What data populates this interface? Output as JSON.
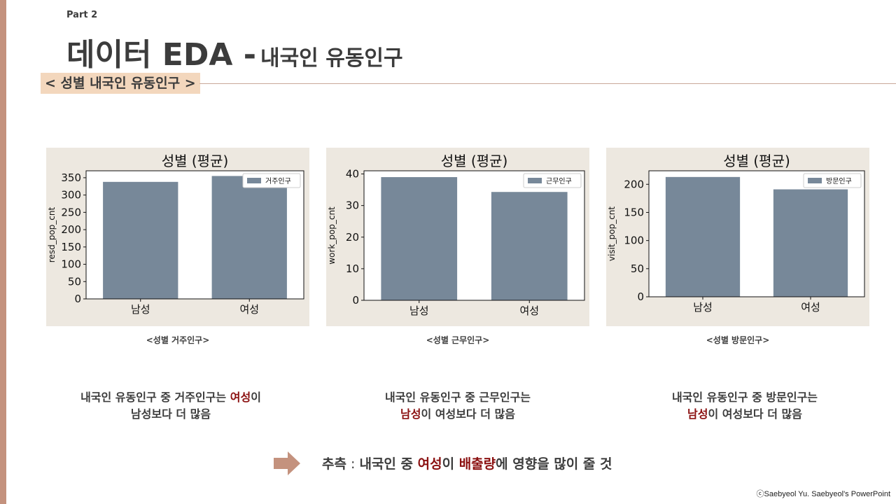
{
  "part_label": "Part 2",
  "title_main": "데이터 EDA -",
  "title_sub": "내국인 유동인구",
  "section_tag": "< 성별 내국인 유동인구 >",
  "colors": {
    "bar": "#778899",
    "panel_bg": "#ede8e0",
    "accent_red": "#8b1010",
    "left_bar": "#c4927e",
    "tag_bg": "#f3d7bd",
    "arrow": "#c4927e"
  },
  "chart_data": [
    {
      "type": "bar",
      "title": "성별 (평균)",
      "categories": [
        "남성",
        "여성"
      ],
      "series": [
        {
          "name": "거주인구",
          "values": [
            338,
            355
          ]
        }
      ],
      "xlabel": "",
      "ylabel": "resd_pop_cnt",
      "ylim": [
        0,
        370
      ],
      "yticks": [
        0,
        50,
        100,
        150,
        200,
        250,
        300,
        350
      ],
      "grid": false,
      "legend": "top-right"
    },
    {
      "type": "bar",
      "title": "성별 (평균)",
      "categories": [
        "남성",
        "여성"
      ],
      "series": [
        {
          "name": "근무인구",
          "values": [
            39,
            34.3
          ]
        }
      ],
      "xlabel": "",
      "ylabel": "work_pop_cnt",
      "ylim": [
        0,
        41
      ],
      "yticks": [
        0,
        10,
        20,
        30,
        40
      ],
      "grid": false,
      "legend": "top-right"
    },
    {
      "type": "bar",
      "title": "성별 (평균)",
      "categories": [
        "남성",
        "여성"
      ],
      "series": [
        {
          "name": "방문인구",
          "values": [
            213,
            191
          ]
        }
      ],
      "xlabel": "",
      "ylabel": "visit_pop_cnt",
      "ylim": [
        0,
        224
      ],
      "yticks": [
        0,
        50,
        100,
        150,
        200
      ],
      "grid": false,
      "legend": "top-right"
    }
  ],
  "captions": [
    "<성별 거주인구>",
    "<성별 근무인구>",
    "<성별 방문인구>"
  ],
  "desc1": {
    "a": "내국인 유동인구 중 거주인구는 ",
    "b": "여성",
    "c": "이",
    "d": "남성보다 더 많음"
  },
  "desc2": {
    "a": "내국인 유동인구 중 근무인구는",
    "b": "남성",
    "c": "이 여성보다 더 많음"
  },
  "desc3": {
    "a": "내국인 유동인구 중 방문인구는",
    "b": "남성",
    "c": "이 여성보다 더 많음"
  },
  "conclusion": {
    "label": "추측",
    "sep": " : ",
    "a": "내국인 중 ",
    "b": "여성",
    "c": "이 ",
    "d": "배출량",
    "e": "에 영향을 많이 줄 것"
  },
  "copyright": "ⓒSaebyeol Yu. Saebyeol's PowerPoint"
}
